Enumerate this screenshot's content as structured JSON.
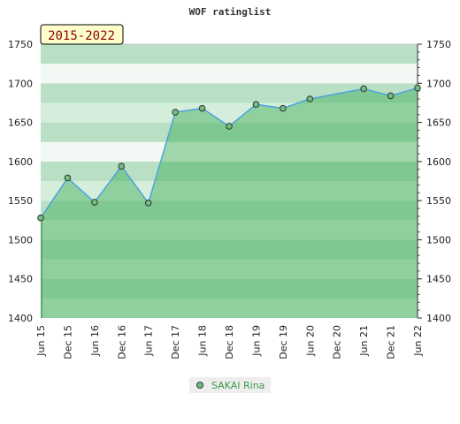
{
  "chart_data": {
    "type": "area",
    "title": "WOF ratinglist",
    "period_badge": "2015-2022",
    "x": [
      "Jun 15",
      "Dec 15",
      "Jun 16",
      "Dec 16",
      "Jun 17",
      "Dec 17",
      "Jun 18",
      "Dec 18",
      "Jun 19",
      "Dec 19",
      "Jun 20",
      "Dec 20",
      "Jun 21",
      "Dec 21",
      "Jun 22"
    ],
    "series": [
      {
        "name": "SAKAI Rina",
        "color": "#4aa3df",
        "points": [
          {
            "x": "Jun 15",
            "y": 1528
          },
          {
            "x": "Dec 15",
            "y": 1579
          },
          {
            "x": "Jun 16",
            "y": 1548
          },
          {
            "x": "Dec 16",
            "y": 1594
          },
          {
            "x": "Jun 17",
            "y": 1547
          },
          {
            "x": "Dec 17",
            "y": 1663
          },
          {
            "x": "Jun 18",
            "y": 1668
          },
          {
            "x": "Dec 18",
            "y": 1645
          },
          {
            "x": "Jun 19",
            "y": 1673
          },
          {
            "x": "Dec 19",
            "y": 1668
          },
          {
            "x": "Jun 20",
            "y": 1680
          },
          {
            "x": "Jun 21",
            "y": 1693
          },
          {
            "x": "Dec 21",
            "y": 1684
          },
          {
            "x": "Jun 22",
            "y": 1694
          }
        ]
      }
    ],
    "ylim": [
      1400,
      1750
    ],
    "yticks": [
      1400,
      1450,
      1500,
      1550,
      1600,
      1650,
      1700,
      1750
    ],
    "grid": true,
    "legend_position": "bottom-center"
  }
}
